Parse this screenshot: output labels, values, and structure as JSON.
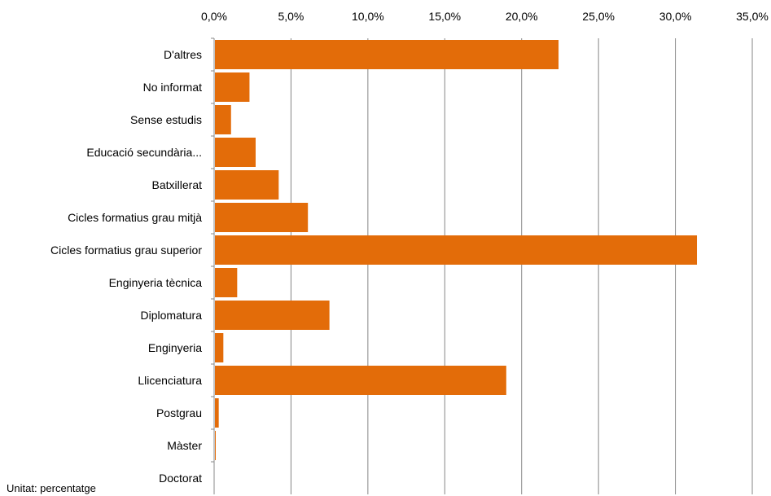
{
  "chart_data": {
    "type": "bar",
    "orientation": "horizontal",
    "categories": [
      "D'altres",
      "No informat",
      "Sense estudis",
      "Educació secundària...",
      "Batxillerat",
      "Cicles formatius grau mitjà",
      "Cicles formatius grau superior",
      "Enginyeria tècnica",
      "Diplomatura",
      "Enginyeria",
      "Llicenciatura",
      "Postgrau",
      "Màster",
      "Doctorat"
    ],
    "values": [
      22.4,
      2.3,
      1.1,
      2.7,
      4.2,
      6.1,
      31.4,
      1.5,
      7.5,
      0.6,
      19.0,
      0.3,
      0.1,
      0.0
    ],
    "xlim": [
      0,
      35
    ],
    "xticks": [
      0,
      5,
      10,
      15,
      20,
      25,
      30,
      35
    ],
    "xtick_labels": [
      "0,0%",
      "5,0%",
      "10,0%",
      "15,0%",
      "20,0%",
      "25,0%",
      "30,0%",
      "35,0%"
    ],
    "x_axis_position": "top",
    "grid": "vertical",
    "bar_color": "#E36C09",
    "title": "",
    "xlabel": "",
    "ylabel": ""
  },
  "footer": {
    "unit_note": "Unitat: percentatge"
  }
}
